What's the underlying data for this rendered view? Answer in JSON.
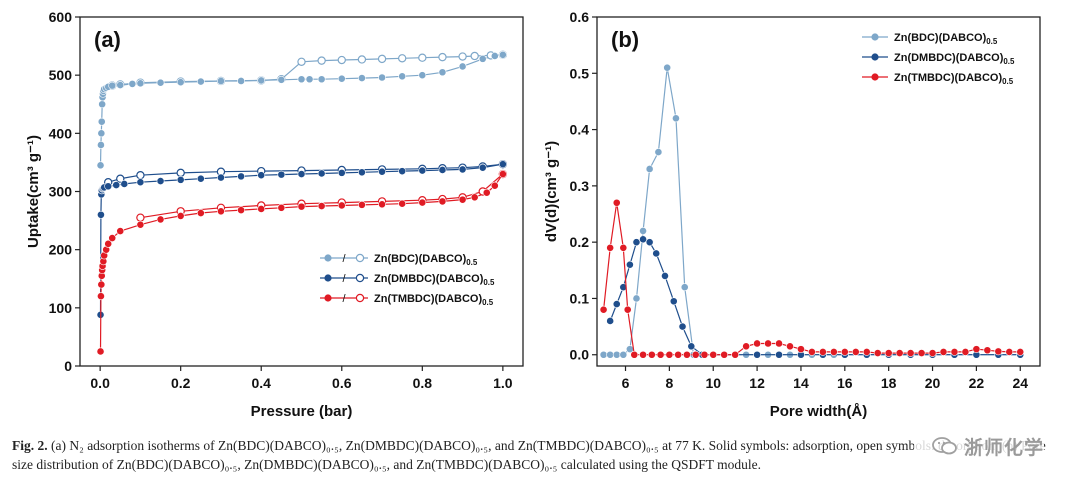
{
  "chart_data": [
    {
      "type": "line",
      "panel_label": "(a)",
      "xlabel": "Pressure (bar)",
      "ylabel": "Uptake(cm³ g⁻¹)",
      "xlim": [
        -0.05,
        1.05
      ],
      "ylim": [
        0,
        600
      ],
      "xticks": [
        0.0,
        0.2,
        0.4,
        0.6,
        0.8,
        1.0
      ],
      "xtick_labels": [
        "0.0",
        "0.2",
        "0.4",
        "0.6",
        "0.8",
        "1.0"
      ],
      "yticks": [
        0,
        100,
        200,
        300,
        400,
        500,
        600
      ],
      "legend_position": "lower-right",
      "series": [
        {
          "name": "Zn(BDC)(DABCO)0.5",
          "color": "#7ea7c9",
          "adsorption": {
            "x": [
              0.001,
              0.002,
              0.003,
              0.004,
              0.005,
              0.006,
              0.007,
              0.008,
              0.01,
              0.015,
              0.02,
              0.03,
              0.05,
              0.08,
              0.1,
              0.15,
              0.2,
              0.25,
              0.3,
              0.35,
              0.4,
              0.45,
              0.5,
              0.52,
              0.55,
              0.6,
              0.65,
              0.7,
              0.75,
              0.8,
              0.85,
              0.9,
              0.95,
              0.98,
              1.0
            ],
            "y": [
              345,
              380,
              400,
              420,
              450,
              462,
              468,
              473,
              476,
              478,
              480,
              482,
              483,
              485,
              486,
              487,
              488,
              489,
              490,
              490,
              491,
              492,
              493,
              493,
              493,
              494,
              495,
              496,
              498,
              500,
              505,
              515,
              528,
              533,
              535
            ]
          },
          "desorption": {
            "x": [
              1.0,
              0.97,
              0.93,
              0.9,
              0.85,
              0.8,
              0.75,
              0.7,
              0.65,
              0.6,
              0.55,
              0.5,
              0.45,
              0.4,
              0.3,
              0.2,
              0.1,
              0.05,
              0.03
            ],
            "y": [
              535,
              534,
              533,
              532,
              531,
              530,
              529,
              528,
              527,
              526,
              525,
              523,
              493,
              491,
              490,
              489,
              487,
              484,
              482
            ]
          }
        },
        {
          "name": "Zn(DMBDC)(DABCO)0.5",
          "color": "#1f4e8c",
          "adsorption": {
            "x": [
              0.001,
              0.002,
              0.003,
              0.004,
              0.006,
              0.008,
              0.01,
              0.02,
              0.04,
              0.06,
              0.1,
              0.15,
              0.2,
              0.25,
              0.3,
              0.35,
              0.4,
              0.45,
              0.5,
              0.55,
              0.6,
              0.65,
              0.7,
              0.75,
              0.8,
              0.85,
              0.9,
              0.95,
              1.0
            ],
            "y": [
              88,
              260,
              295,
              302,
              305,
              306,
              307,
              309,
              311,
              313,
              316,
              318,
              320,
              322,
              324,
              326,
              328,
              329,
              330,
              331,
              332,
              333,
              334,
              335,
              336,
              337,
              338,
              341,
              347
            ]
          },
          "desorption": {
            "x": [
              1.0,
              0.95,
              0.9,
              0.85,
              0.8,
              0.7,
              0.6,
              0.5,
              0.4,
              0.3,
              0.2,
              0.1,
              0.05,
              0.02
            ],
            "y": [
              347,
              343,
              341,
              340,
              339,
              338,
              337,
              336,
              335,
              334,
              332,
              328,
              322,
              316
            ]
          }
        },
        {
          "name": "Zn(TMBDC)(DABCO)0.5",
          "color": "#e01b24",
          "adsorption": {
            "x": [
              0.001,
              0.002,
              0.003,
              0.004,
              0.005,
              0.006,
              0.008,
              0.01,
              0.015,
              0.02,
              0.03,
              0.05,
              0.1,
              0.15,
              0.2,
              0.25,
              0.3,
              0.35,
              0.4,
              0.45,
              0.5,
              0.55,
              0.6,
              0.65,
              0.7,
              0.75,
              0.8,
              0.85,
              0.9,
              0.93,
              0.96,
              0.98,
              1.0
            ],
            "y": [
              25,
              120,
              140,
              155,
              165,
              172,
              180,
              190,
              200,
              210,
              220,
              232,
              243,
              252,
              258,
              263,
              266,
              268,
              270,
              272,
              274,
              275,
              276,
              277,
              278,
              279,
              281,
              283,
              286,
              290,
              298,
              310,
              330
            ]
          },
          "desorption": {
            "x": [
              1.0,
              0.95,
              0.9,
              0.85,
              0.8,
              0.7,
              0.6,
              0.5,
              0.4,
              0.3,
              0.2,
              0.1
            ],
            "y": [
              330,
              300,
              290,
              287,
              285,
              283,
              281,
              279,
              276,
              272,
              266,
              255
            ]
          }
        }
      ]
    },
    {
      "type": "line",
      "panel_label": "(b)",
      "xlabel": "Pore width(Å)",
      "ylabel": "dV(d)(cm³ g⁻¹)",
      "xlim": [
        4.7,
        24.9
      ],
      "ylim": [
        -0.02,
        0.6
      ],
      "xticks": [
        6,
        8,
        10,
        12,
        14,
        16,
        18,
        20,
        22,
        24
      ],
      "xtick_labels": [
        "6",
        "8",
        "10",
        "12",
        "14",
        "16",
        "18",
        "20",
        "22",
        "24"
      ],
      "yticks": [
        0.0,
        0.1,
        0.2,
        0.3,
        0.4,
        0.5,
        0.6
      ],
      "ytick_labels": [
        "0.0",
        "0.1",
        "0.2",
        "0.3",
        "0.4",
        "0.5",
        "0.6"
      ],
      "legend_position": "top-right",
      "series": [
        {
          "name": "Zn(BDC)(DABCO)0.5",
          "color": "#7ea7c9",
          "x": [
            5.0,
            5.3,
            5.6,
            5.9,
            6.2,
            6.5,
            6.8,
            7.1,
            7.5,
            7.9,
            8.3,
            8.7,
            9.1,
            9.5,
            10,
            10.5,
            11,
            11.5,
            12,
            12.5,
            13,
            13.5,
            14,
            14.5,
            15,
            15.5,
            16,
            17,
            18,
            19,
            20,
            21,
            22,
            23,
            24
          ],
          "y": [
            0,
            0,
            0,
            0,
            0.01,
            0.1,
            0.22,
            0.33,
            0.36,
            0.51,
            0.42,
            0.12,
            0,
            0,
            0,
            0,
            0,
            0,
            0,
            0,
            0,
            0,
            0,
            0,
            0,
            0,
            0,
            0,
            0,
            0,
            0,
            0,
            0,
            0,
            0
          ]
        },
        {
          "name": "Zn(DMBDC)(DABCO)0.5",
          "color": "#1f4e8c",
          "x": [
            5.3,
            5.6,
            5.9,
            6.2,
            6.5,
            6.8,
            7.1,
            7.4,
            7.8,
            8.2,
            8.6,
            9.0,
            9.5,
            10,
            11,
            12,
            13,
            14,
            15,
            16,
            17,
            18,
            19,
            20,
            21,
            22,
            23,
            24
          ],
          "y": [
            0.06,
            0.09,
            0.12,
            0.16,
            0.2,
            0.205,
            0.2,
            0.18,
            0.14,
            0.095,
            0.05,
            0.015,
            0,
            0,
            0,
            0,
            0,
            0,
            0,
            0,
            0,
            0,
            0,
            0,
            0,
            0,
            0,
            0
          ]
        },
        {
          "name": "Zn(TMBDC)(DABCO)0.5",
          "color": "#e01b24",
          "x": [
            5.0,
            5.3,
            5.6,
            5.9,
            6.1,
            6.4,
            6.8,
            7.2,
            7.6,
            8.0,
            8.4,
            8.8,
            9.2,
            9.6,
            10,
            10.5,
            11,
            11.5,
            12,
            12.5,
            13,
            13.5,
            14,
            14.5,
            15,
            15.5,
            16,
            16.5,
            17,
            17.5,
            18,
            18.5,
            19,
            19.5,
            20,
            20.5,
            21,
            21.5,
            22,
            22.5,
            23,
            23.5,
            24
          ],
          "y": [
            0.08,
            0.19,
            0.27,
            0.19,
            0.08,
            0,
            0,
            0,
            0,
            0,
            0,
            0,
            0,
            0,
            0,
            0,
            0,
            0.015,
            0.02,
            0.02,
            0.02,
            0.015,
            0.01,
            0.005,
            0.005,
            0.005,
            0.005,
            0.005,
            0.005,
            0.003,
            0.003,
            0.003,
            0.003,
            0.003,
            0.003,
            0.005,
            0.005,
            0.005,
            0.01,
            0.008,
            0.006,
            0.005,
            0.005
          ]
        }
      ]
    }
  ],
  "caption": {
    "label": "Fig. 2.",
    "text": "(a) N₂ adsorption isotherms of Zn(BDC)(DABCO)₀.₅, Zn(DMBDC)(DABCO)₀.₅, and Zn(TMBDC)(DABCO)₀.₅ at 77 K. Solid symbols: adsorption, open symbols: desorption. (b) Pore size distribution of Zn(BDC)(DABCO)₀.₅, Zn(DMBDC)(DABCO)₀.₅, and Zn(TMBDC)(DABCO)₀.₅ calculated using the QSDFT module."
  },
  "watermark": {
    "text": "浙师化学",
    "icon": "wechat-icon"
  }
}
